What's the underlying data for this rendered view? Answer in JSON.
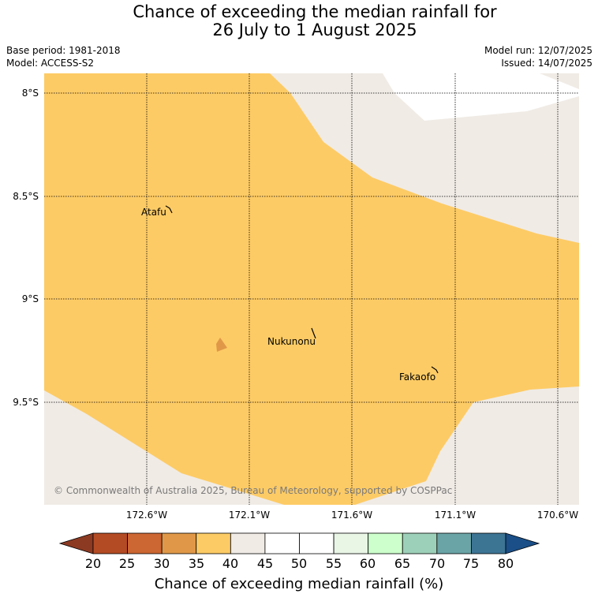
{
  "title": {
    "line1": "Chance of exceeding the median rainfall for",
    "line2": "26 July to 1 August 2025"
  },
  "meta": {
    "base_period": "Base period: 1981-2018",
    "model": "Model: ACCESS-S2",
    "model_run": "Model run: 12/07/2025",
    "issued": "Issued: 14/07/2025"
  },
  "map": {
    "lat_labels": [
      "8°S",
      "8.5°S",
      "9°S",
      "9.5°S"
    ],
    "lon_labels": [
      "172.6°W",
      "172.1°W",
      "171.6°W",
      "171.1°W",
      "170.6°W"
    ],
    "places": [
      "Atafu",
      "Nukunonu",
      "Fakaofo"
    ],
    "copyright": "© Commonwealth of Australia 2025, Bureau of Meteorology, supported by COSPPac"
  },
  "colorbar": {
    "label": "Chance of exceeding median rainfall (%)",
    "ticks": [
      "20",
      "25",
      "30",
      "35",
      "40",
      "45",
      "50",
      "55",
      "60",
      "65",
      "70",
      "75",
      "80"
    ],
    "colors": {
      "below_20": "#8c3a22",
      "20_25": "#b34b24",
      "25_30": "#cc6632",
      "30_35": "#e09848",
      "35_40": "#fdcb65",
      "40_45": "#f0ebe5",
      "45_50": "#ffffff",
      "50_55": "#ffffff",
      "55_60": "#e9f5e5",
      "60_65": "#ccffcc",
      "65_70": "#9dd0b8",
      "70_75": "#6aa4a6",
      "75_80": "#3c7494",
      "above_80": "#1a4f87"
    }
  }
}
